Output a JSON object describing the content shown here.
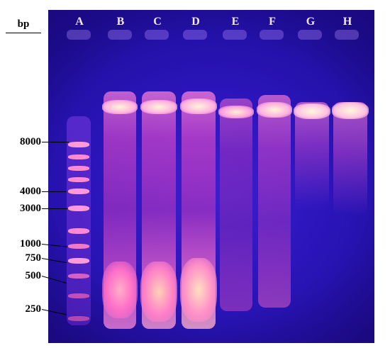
{
  "axis": {
    "unit": "bp"
  },
  "markers": [
    {
      "label": "8000"
    },
    {
      "label": "4000"
    },
    {
      "label": "3000"
    },
    {
      "label": "1000"
    },
    {
      "label": "750"
    },
    {
      "label": "500"
    },
    {
      "label": "250"
    }
  ],
  "lanes": [
    "A",
    "B",
    "C",
    "D",
    "E",
    "F",
    "G",
    "H"
  ],
  "colors": {
    "gel": "#2a14b8",
    "band_bright": "#fff2c8",
    "smear": "#e040c8",
    "ladder": "#ff9ad8"
  }
}
